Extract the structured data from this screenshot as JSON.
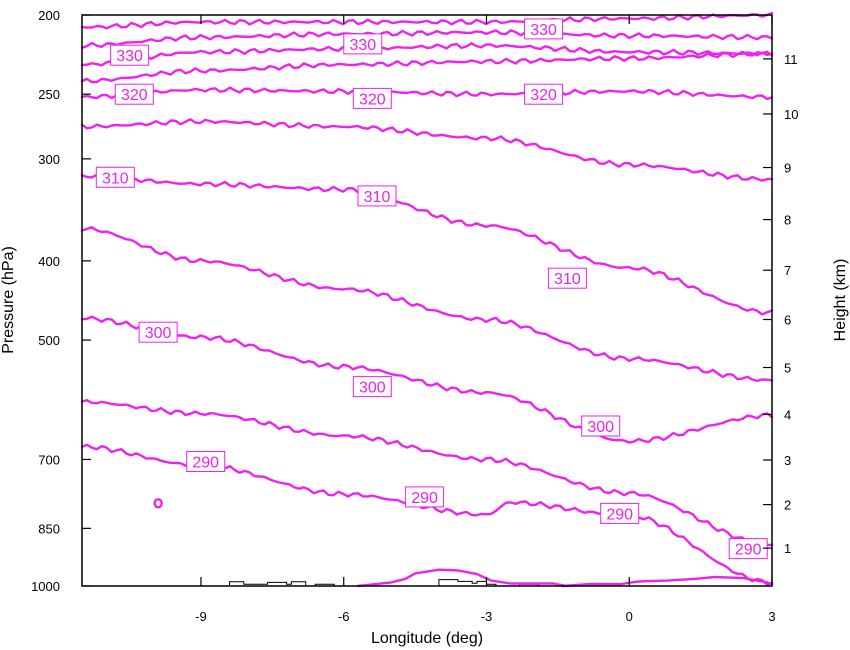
{
  "chart_data": {
    "type": "line",
    "title": "",
    "xlabel": "Longitude (deg)",
    "ylabel_left": "Pressure (hPa)",
    "ylabel_right": "Height (km)",
    "xlim": [
      -11.5,
      3
    ],
    "x_ticks": [
      -9,
      -6,
      -3,
      0,
      3
    ],
    "x_tick_labels": [
      "-9",
      "-6",
      "-3",
      "0",
      "3"
    ],
    "pressure_ylim": [
      1000,
      200
    ],
    "pressure_log_scale": true,
    "pressure_ticks": [
      200,
      250,
      300,
      400,
      500,
      700,
      850,
      1000
    ],
    "pressure_tick_labels": [
      "200",
      "250",
      "300",
      "400",
      "500",
      "700",
      "850",
      "1000"
    ],
    "height_ticks": [
      1,
      2,
      3,
      4,
      5,
      6,
      7,
      8,
      9,
      10,
      11
    ],
    "height_tick_labels": [
      "1",
      "2",
      "3",
      "4",
      "5",
      "6",
      "7",
      "8",
      "9",
      "10",
      "11"
    ],
    "contour_color": "#ee22ee",
    "terrain_color": "#000000",
    "series": [
      {
        "x": [
          -11.5,
          -9,
          -6,
          -3,
          0,
          3
        ],
        "y": [
          207,
          204,
          204,
          204,
          202,
          200
        ]
      },
      {
        "x": [
          -11.5,
          -9,
          -6,
          -3,
          0,
          3
        ],
        "y": [
          218,
          213,
          211,
          210,
          212,
          213
        ]
      },
      {
        "x": [
          -11.5,
          -9,
          -6,
          -3,
          0,
          3
        ],
        "y": [
          230,
          222,
          220,
          218,
          222,
          223
        ]
      },
      {
        "x": [
          -11.5,
          -9,
          -6,
          -3,
          0,
          3
        ],
        "y": [
          241,
          234,
          230,
          228,
          226,
          223
        ]
      },
      {
        "x": [
          -11.5,
          -9,
          -6,
          -3,
          0,
          3
        ],
        "y": [
          252,
          247,
          248,
          250,
          248,
          252
        ]
      },
      {
        "x": [
          -11.5,
          -9,
          -6,
          -3,
          0,
          3
        ],
        "y": [
          274,
          270,
          274,
          283,
          305,
          318
        ]
      },
      {
        "x": [
          -11.5,
          -9,
          -6,
          -3,
          0,
          3
        ],
        "y": [
          315,
          322,
          327,
          362,
          408,
          463
        ]
      },
      {
        "x": [
          -11.5,
          -9,
          -6,
          -3,
          0,
          3
        ],
        "y": [
          365,
          400,
          433,
          472,
          527,
          560
        ]
      },
      {
        "x": [
          -11.5,
          -9,
          -6,
          -3,
          0,
          3
        ],
        "y": [
          470,
          496,
          539,
          580,
          665,
          618
        ]
      },
      {
        "x": [
          -11.5,
          -9,
          -6,
          -3,
          0,
          3
        ],
        "y": [
          595,
          615,
          655,
          700,
          770,
          890
        ]
      },
      {
        "x": [
          -11.5,
          -9,
          -6,
          -3,
          -2.5,
          0,
          3
        ],
        "y": [
          675,
          712,
          772,
          818,
          790,
          820,
          990
        ]
      }
    ],
    "contour_labels": [
      {
        "text": "330",
        "x": -10.5,
        "y": 224
      },
      {
        "text": "330",
        "x": -5.6,
        "y": 217
      },
      {
        "text": "330",
        "x": -1.8,
        "y": 208
      },
      {
        "text": "320",
        "x": -10.4,
        "y": 250
      },
      {
        "text": "320",
        "x": -5.4,
        "y": 253
      },
      {
        "text": "320",
        "x": -1.8,
        "y": 250
      },
      {
        "text": "310",
        "x": -10.8,
        "y": 316
      },
      {
        "text": "310",
        "x": -5.3,
        "y": 333
      },
      {
        "text": "310",
        "x": -1.3,
        "y": 420
      },
      {
        "text": "300",
        "x": -9.9,
        "y": 489
      },
      {
        "text": "300",
        "x": -5.4,
        "y": 570
      },
      {
        "text": "300",
        "x": -0.6,
        "y": 637
      },
      {
        "text": "290",
        "x": -8.9,
        "y": 704
      },
      {
        "text": "290",
        "x": -4.3,
        "y": 778
      },
      {
        "text": "290",
        "x": -0.2,
        "y": 815
      },
      {
        "text": "290",
        "x": 2.5,
        "y": 900
      }
    ]
  }
}
